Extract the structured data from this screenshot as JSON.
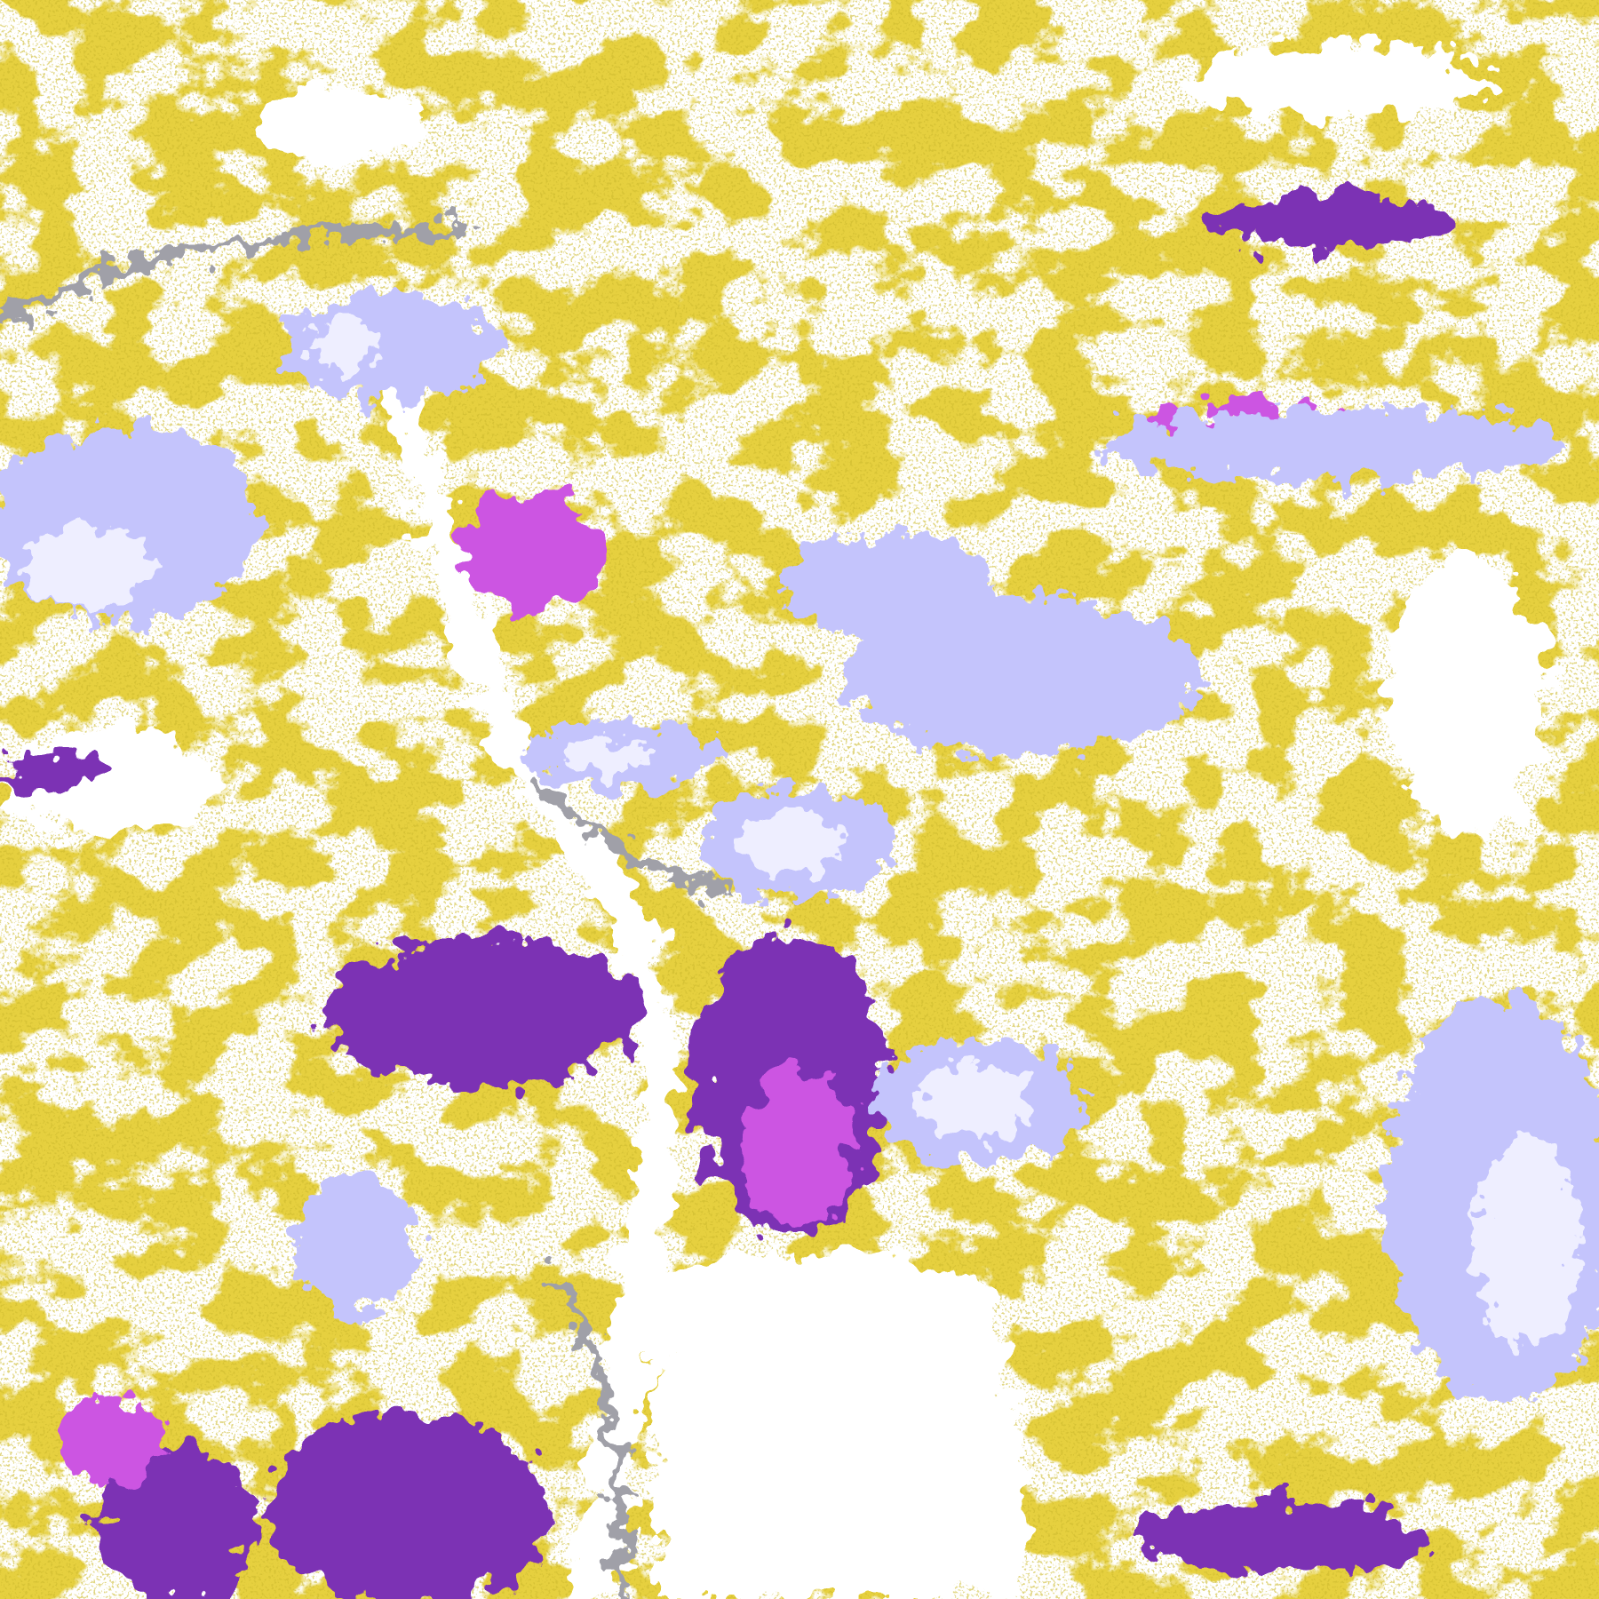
{
  "map": {
    "palette": {
      "background": "#ffffff",
      "gold": "#c9a10e",
      "gold_dark": "#a8850a",
      "purple": "#7c32b4",
      "magenta": "#cc55e2",
      "lavender": "#c4c4fc",
      "pale_lavender": "#eeeeff",
      "gray": "#a0a0a8"
    }
  }
}
